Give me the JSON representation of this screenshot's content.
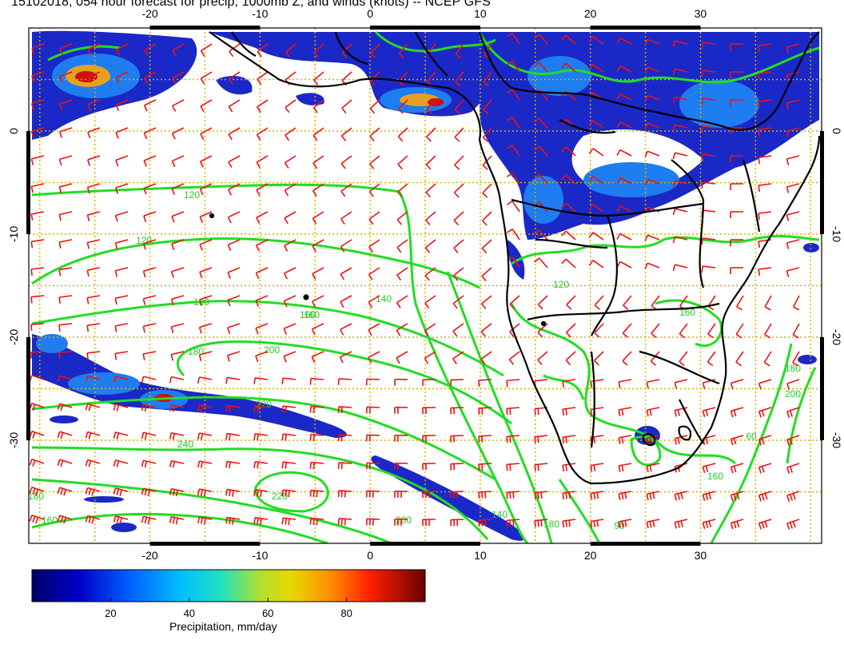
{
  "title": "15102018, 054 hour forecast for precip, 1000mb Z, and winds (knots) -- NCEP GFS",
  "map": {
    "lon_ticks": [
      "-20",
      "-10",
      "0",
      "10",
      "20",
      "30"
    ],
    "lat_ticks": [
      "0",
      "-10",
      "-20",
      "-30"
    ],
    "lon_range": [
      -31,
      41
    ],
    "lat_range": [
      -40,
      10
    ],
    "contour_labels": [
      "120",
      "120",
      "160",
      "140",
      "180",
      "160",
      "180",
      "200",
      "220",
      "240",
      "220",
      "200",
      "180",
      "160",
      "140",
      "180",
      "90",
      "120",
      "160",
      "180",
      "200",
      "60",
      "160"
    ],
    "colors": {
      "contour": "#22dd22",
      "wind_barb": "#ee1111",
      "coastline": "#000000",
      "grid": "#d4b000",
      "precip_low": "#10107a",
      "precip_mid": "#1e7df0",
      "precip_high": "#cc1010"
    }
  },
  "colorbar": {
    "label": "Precipitation, mm/day",
    "ticks": [
      "20",
      "40",
      "60",
      "80"
    ],
    "range": [
      0,
      100
    ],
    "colors": [
      "#00007a",
      "#0000d0",
      "#0050ff",
      "#00a8ff",
      "#00e0e0",
      "#40e0a0",
      "#a0e040",
      "#e0e000",
      "#ffa000",
      "#ff4000",
      "#d00000",
      "#700000"
    ]
  }
}
